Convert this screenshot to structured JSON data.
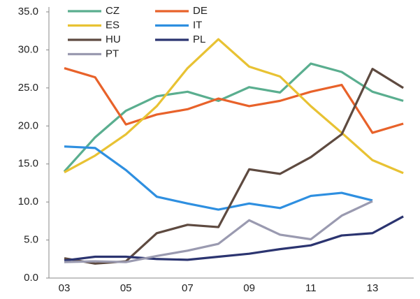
{
  "chart_data": {
    "type": "line",
    "categories": [
      "03",
      null,
      "05",
      null,
      "07",
      null,
      "09",
      null,
      "11",
      null,
      "13",
      null
    ],
    "ylim": [
      0,
      35
    ],
    "yticks": [
      {
        "value": 0,
        "label": "0.0"
      },
      {
        "value": 5,
        "label": "5.0"
      },
      {
        "value": 10,
        "label": "10.0"
      },
      {
        "value": 15,
        "label": "15.0"
      },
      {
        "value": 20,
        "label": "20.0"
      },
      {
        "value": 25,
        "label": "25.0"
      },
      {
        "value": 30,
        "label": "30.0"
      },
      {
        "value": 35,
        "label": "35.0"
      }
    ],
    "grid": false,
    "series": [
      {
        "name": "CZ",
        "color": "#5aae8f",
        "values": [
          14.0,
          18.5,
          22.0,
          23.9,
          24.5,
          23.3,
          25.1,
          24.4,
          28.2,
          27.1,
          24.5,
          23.3
        ]
      },
      {
        "name": "DE",
        "color": "#e8622a",
        "values": [
          27.6,
          26.4,
          20.2,
          21.5,
          22.2,
          23.6,
          22.6,
          23.3,
          24.5,
          25.4,
          19.1,
          20.3
        ]
      },
      {
        "name": "ES",
        "color": "#e8c233",
        "values": [
          13.9,
          16.1,
          18.9,
          22.6,
          27.6,
          31.4,
          27.8,
          26.5,
          22.6,
          19.1,
          15.5,
          13.8
        ]
      },
      {
        "name": "IT",
        "color": "#2e8fe0",
        "values": [
          17.3,
          17.1,
          14.2,
          10.7,
          9.8,
          9.0,
          9.8,
          9.2,
          10.8,
          11.2,
          10.2,
          null
        ]
      },
      {
        "name": "HU",
        "color": "#5e4a40",
        "values": [
          2.6,
          1.9,
          2.2,
          5.9,
          7.0,
          6.7,
          14.3,
          13.7,
          15.9,
          18.9,
          27.5,
          25.0
        ]
      },
      {
        "name": "PL",
        "color": "#2b3470",
        "values": [
          2.3,
          2.8,
          2.8,
          2.5,
          2.4,
          2.8,
          3.2,
          3.8,
          4.3,
          5.6,
          5.9,
          8.1
        ]
      },
      {
        "name": "PT",
        "color": "#9a9ab0",
        "values": [
          2.1,
          2.2,
          2.1,
          2.9,
          3.6,
          4.5,
          7.6,
          5.7,
          5.1,
          8.2,
          10.1,
          null
        ]
      }
    ]
  }
}
